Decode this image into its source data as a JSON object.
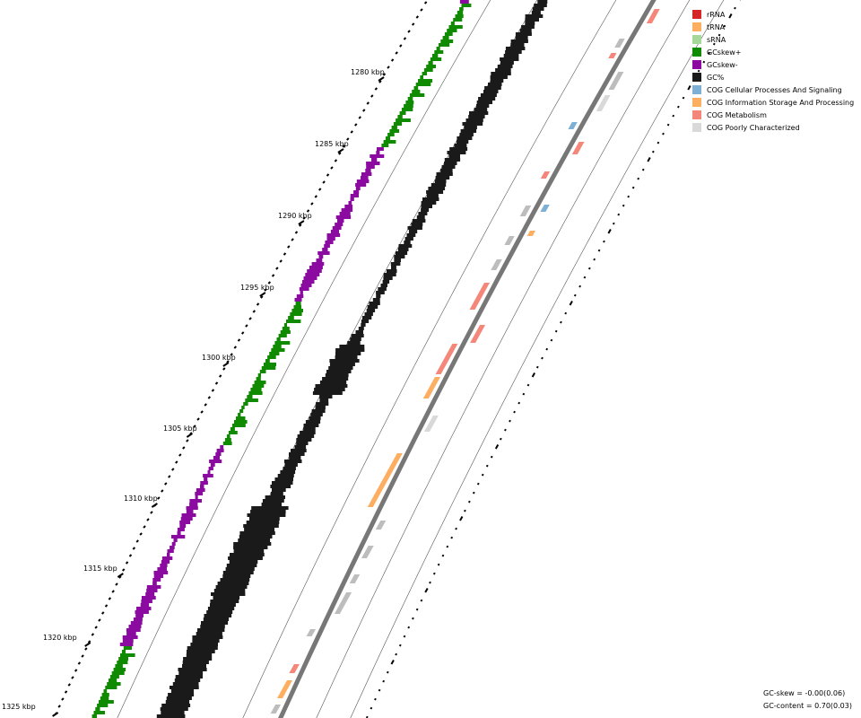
{
  "chart_data": {
    "type": "circular-genome-map",
    "tick_labels": [
      "1280 kbp",
      "1285 kbp",
      "1290 kbp",
      "1295 kbp",
      "1300 kbp",
      "1305 kbp",
      "1310 kbp",
      "1315 kbp",
      "1320 kbp",
      "1325 kbp"
    ],
    "legend": [
      {
        "label": "rRNA",
        "color": "#d62728"
      },
      {
        "label": "tRNA",
        "color": "#fdae61"
      },
      {
        "label": "sRNA",
        "color": "#a6d89a"
      },
      {
        "label": "GCskew+",
        "color": "#108a00"
      },
      {
        "label": "GCskew-",
        "color": "#8b0aa0"
      },
      {
        "label": "GC%",
        "color": "#1a1a1a"
      },
      {
        "label": "COG Cellular Processes And Signaling",
        "color": "#7eb0d5"
      },
      {
        "label": "COG Information Storage And Processing",
        "color": "#fdae61"
      },
      {
        "label": "COG Metabolism",
        "color": "#f4877a"
      },
      {
        "label": "COG Poorly Characterized",
        "color": "#d9d9d9"
      }
    ],
    "stats": {
      "gc_skew": "GC-skew = -0.00(0.06)",
      "gc_content": "GC-content = 0.70(0.03)"
    }
  }
}
